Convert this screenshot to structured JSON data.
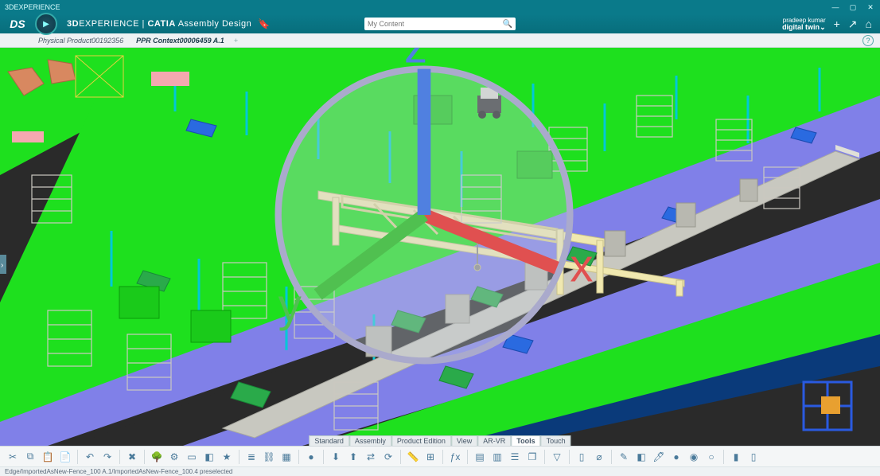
{
  "window": {
    "title": "3DEXPERIENCE"
  },
  "header": {
    "brand_prefix": "3D",
    "brand_main": "EXPERIENCE",
    "brand_sep": " | ",
    "brand_app": "CATIA",
    "brand_sub": " Assembly Design",
    "search_placeholder": "My Content",
    "user_name": "pradeep kumar",
    "user_space": "digital twin",
    "chevron": "⌄"
  },
  "tabs": {
    "inactive": "Physical Product00192356",
    "active": "PPR Context00006459 A.1",
    "plus": "+"
  },
  "menutabs": [
    "Standard",
    "Assembly",
    "Product Edition",
    "View",
    "AR-VR",
    "Tools",
    "Touch"
  ],
  "menutabs_active": 5,
  "status": {
    "text": "Edge/ImportedAsNew-Fence_100 A.1/ImportedAsNew-Fence_100.4 preselected"
  },
  "colors": {
    "floor_green": "#1ee01e",
    "floor_purple": "#8080e8",
    "floor_dark": "#2a2a2a",
    "fence_cyan": "#00e0f0",
    "fence_blue": "#0a3a7a",
    "crane_cream": "#f0e8b0",
    "rack_gray": "#dad8d0",
    "cart_green": "#2aaa4a",
    "cart_blue": "#2a6ae0",
    "machine_gray": "#b8b8b0",
    "conveyor": "#c8c8c0",
    "pole_cyan": "#00c8d8",
    "robot_orange": "#d88860"
  },
  "toolbar_icons": [
    "scissors",
    "copy",
    "paste",
    "clipboard",
    "|",
    "undo",
    "redo",
    "|",
    "delete",
    "|",
    "tree",
    "props",
    "select",
    "highlight",
    "star",
    "|",
    "layers",
    "link",
    "grid",
    "|",
    "dot",
    "|",
    "import",
    "export",
    "swap",
    "refresh",
    "|",
    "ruler",
    "constrain",
    "|",
    "fx",
    "|",
    "table",
    "sheet",
    "stack",
    "window",
    "|",
    "filter",
    "|",
    "doc",
    "fastener",
    "|",
    "pencil",
    "eraser",
    "brush",
    "sphere1",
    "sphere2",
    "sphere3",
    "|",
    "col1",
    "col2"
  ],
  "toolbar_glyphs": {
    "scissors": "✂",
    "copy": "⧉",
    "paste": "📋",
    "clipboard": "📄",
    "undo": "↶",
    "redo": "↷",
    "delete": "✖",
    "tree": "🌳",
    "props": "⚙",
    "select": "▭",
    "highlight": "◧",
    "star": "★",
    "layers": "≣",
    "link": "⛓",
    "grid": "▦",
    "dot": "●",
    "import": "⬇",
    "export": "⬆",
    "swap": "⇄",
    "refresh": "⟳",
    "ruler": "📏",
    "constrain": "⊞",
    "fx": "ƒx",
    "table": "▤",
    "sheet": "▥",
    "stack": "☰",
    "window": "❐",
    "filter": "▽",
    "doc": "▯",
    "fastener": "⌀",
    "pencil": "✎",
    "eraser": "◧",
    "brush": "🖊",
    "sphere1": "●",
    "sphere2": "◉",
    "sphere3": "○",
    "col1": "▮",
    "col2": "▯"
  }
}
